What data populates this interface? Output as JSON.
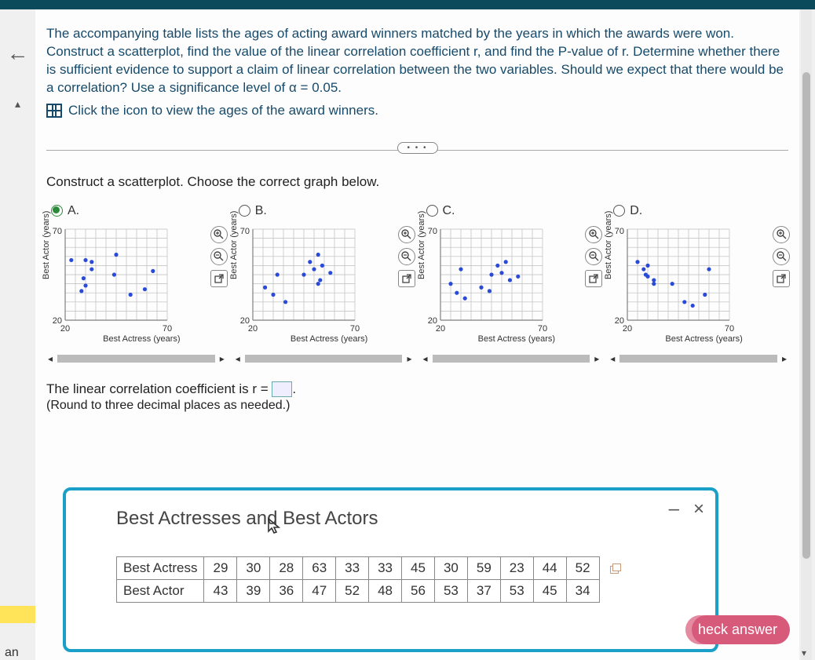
{
  "colors": {
    "topbar": "#0a4a5a",
    "textblue": "#174a6a",
    "point": "#2a4ad8",
    "grid": "#bdbdbd",
    "axis": "#808080",
    "popup_border": "#1aa0c8",
    "checkbtn": "#d85a7a"
  },
  "problem": {
    "text": "The accompanying table lists the ages of acting award winners matched by the years in which the awards were won. Construct a scatterplot, find the value of the linear correlation coefficient r, and find the P-value of r. Determine whether there is sufficient evidence to support a claim of linear correlation between the two variables. Should we expect that there would be a correlation? Use a significance level of α = 0.05.",
    "iconlink": "Click the icon to view the ages of the award winners."
  },
  "instruction": "Construct a scatterplot. Choose the correct graph below.",
  "options": {
    "labels": [
      "A.",
      "B.",
      "C.",
      "D."
    ],
    "selected_index": 0,
    "axes": {
      "xlabel": "Best Actress (years)",
      "ylabel": "Best Actor (years)",
      "xlim": [
        20,
        70
      ],
      "ylim": [
        20,
        70
      ],
      "xtick_labels": [
        "20",
        "70"
      ],
      "ytick_labels": [
        "20",
        "70"
      ],
      "grid_step": 5,
      "font_size": 11
    },
    "toolbar": {
      "zoom_in": "zoom-in",
      "zoom_out": "zoom-out",
      "popout": "open-new"
    },
    "scatter": {
      "A": [
        [
          29,
          43
        ],
        [
          30,
          39
        ],
        [
          28,
          36
        ],
        [
          63,
          47
        ],
        [
          33,
          52
        ],
        [
          33,
          48
        ],
        [
          45,
          56
        ],
        [
          30,
          53
        ],
        [
          59,
          37
        ],
        [
          23,
          53
        ],
        [
          44,
          45
        ],
        [
          52,
          34
        ]
      ],
      "B": [
        [
          26,
          38
        ],
        [
          30,
          34
        ],
        [
          32,
          45
        ],
        [
          36,
          30
        ],
        [
          45,
          45
        ],
        [
          48,
          52
        ],
        [
          50,
          48
        ],
        [
          52,
          56
        ],
        [
          53,
          42
        ],
        [
          54,
          50
        ],
        [
          58,
          46
        ],
        [
          52,
          40
        ]
      ],
      "C": [
        [
          25,
          40
        ],
        [
          28,
          35
        ],
        [
          30,
          48
        ],
        [
          32,
          32
        ],
        [
          40,
          38
        ],
        [
          45,
          45
        ],
        [
          50,
          46
        ],
        [
          52,
          52
        ],
        [
          54,
          42
        ],
        [
          58,
          44
        ],
        [
          48,
          50
        ],
        [
          44,
          36
        ]
      ],
      "D": [
        [
          25,
          52
        ],
        [
          28,
          48
        ],
        [
          29,
          45
        ],
        [
          30,
          44
        ],
        [
          30,
          50
        ],
        [
          33,
          40
        ],
        [
          33,
          42
        ],
        [
          42,
          40
        ],
        [
          48,
          30
        ],
        [
          58,
          34
        ],
        [
          60,
          48
        ],
        [
          52,
          28
        ]
      ]
    }
  },
  "answer": {
    "prefix": "The linear correlation coefficient is r = ",
    "suffix": ".",
    "hint": "(Round to three decimal places as needed.)"
  },
  "popup": {
    "title": "Best Actresses and Best Actors",
    "minimize": "–",
    "close": "×",
    "table": {
      "rows": [
        {
          "label": "Best Actress",
          "vals": [
            29,
            30,
            28,
            63,
            33,
            33,
            45,
            30,
            59,
            23,
            44,
            52
          ]
        },
        {
          "label": "Best Actor",
          "vals": [
            43,
            39,
            36,
            47,
            52,
            48,
            56,
            53,
            37,
            53,
            45,
            34
          ]
        }
      ]
    }
  },
  "checkbtn_label": "heck answer",
  "leftcol": {
    "an_label": "an"
  }
}
